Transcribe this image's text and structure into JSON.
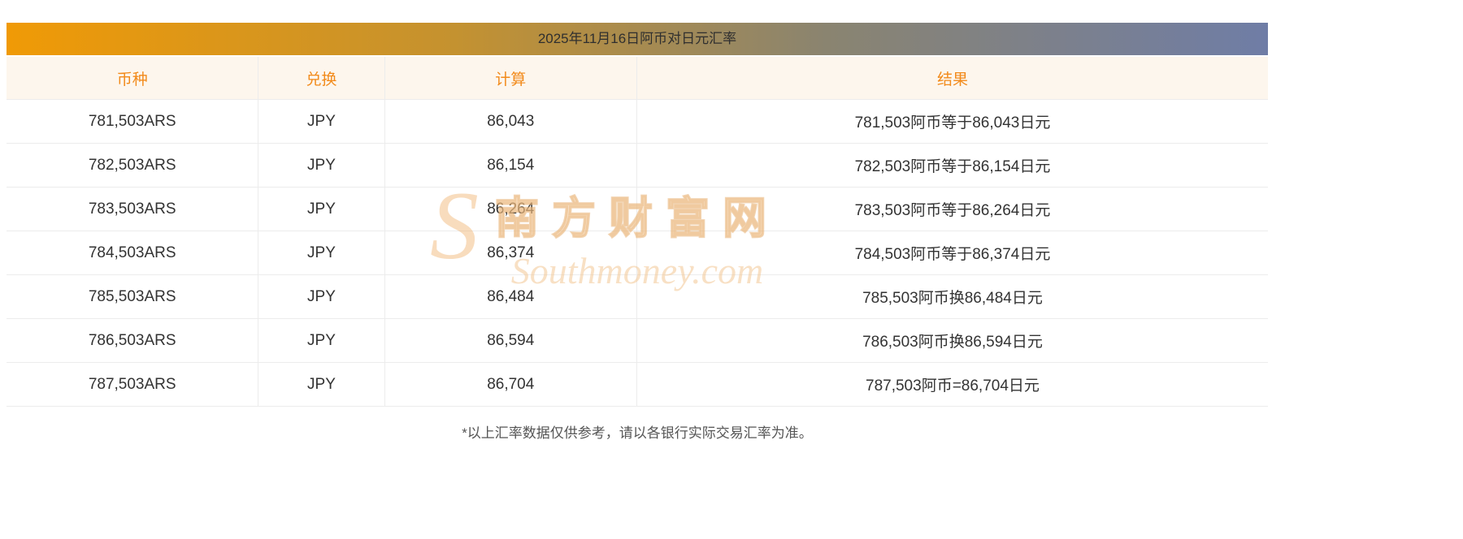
{
  "title": "2025年11月16日阿币对日元汇率",
  "table": {
    "headers": [
      "币种",
      "兑换",
      "计算",
      "结果"
    ],
    "rows": [
      [
        "781,503ARS",
        "JPY",
        "86,043",
        "781,503阿币等于86,043日元"
      ],
      [
        "782,503ARS",
        "JPY",
        "86,154",
        "782,503阿币等于86,154日元"
      ],
      [
        "783,503ARS",
        "JPY",
        "86,264",
        "783,503阿币等于86,264日元"
      ],
      [
        "784,503ARS",
        "JPY",
        "86,374",
        "784,503阿币等于86,374日元"
      ],
      [
        "785,503ARS",
        "JPY",
        "86,484",
        "785,503阿币换86,484日元"
      ],
      [
        "786,503ARS",
        "JPY",
        "86,594",
        "786,503阿币换86,594日元"
      ],
      [
        "787,503ARS",
        "JPY",
        "86,704",
        "787,503阿币=86,704日元"
      ]
    ]
  },
  "footer_note": "*以上汇率数据仅供参考，请以各银行实际交易汇率为准。",
  "watermark": {
    "logo": "S",
    "cn": "南方财富网",
    "en": "Southmoney.com"
  },
  "colors": {
    "gradient_start": "#f09a06",
    "gradient_end": "#6f7da6",
    "title_text": "#2f2f2f",
    "header_bg": "#fdf6ed",
    "header_text": "#f28a1a",
    "border": "#ececec"
  }
}
